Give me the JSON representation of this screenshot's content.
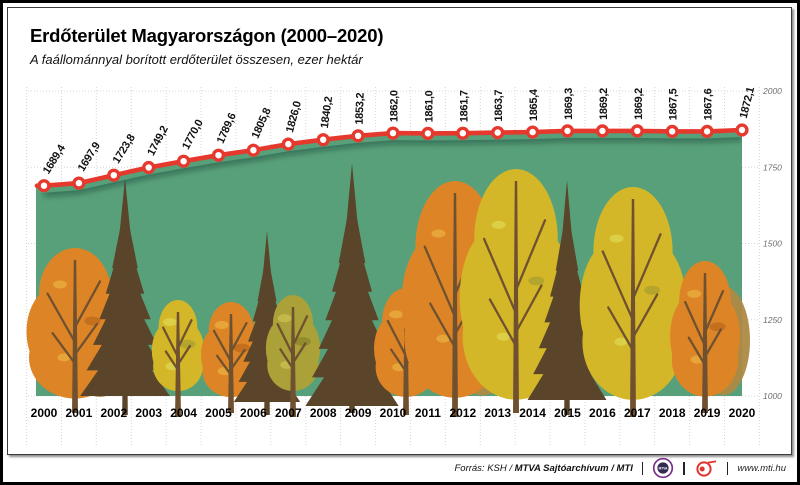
{
  "header": {
    "title": "Erdőterület Magyarországon (2000–2020)",
    "subtitle": "A faállománnyal borított erdőterület összesen, ezer hektár"
  },
  "chart_data": {
    "type": "area",
    "title": "Erdőterület Magyarországon (2000–2020)",
    "subtitle": "A faállománnyal borított erdőterület összesen, ezer hektár",
    "x": [
      2000,
      2001,
      2002,
      2003,
      2004,
      2005,
      2006,
      2007,
      2008,
      2009,
      2010,
      2011,
      2012,
      2013,
      2014,
      2015,
      2016,
      2017,
      2018,
      2019,
      2020
    ],
    "x_labels": [
      "2000",
      "2001",
      "2002",
      "2003",
      "2004",
      "2005",
      "2006",
      "2007",
      "2008",
      "2009",
      "2010",
      "2011",
      "2012",
      "2013",
      "2014",
      "2015",
      "2016",
      "2017",
      "2018",
      "2019",
      "2020"
    ],
    "values": [
      1689.4,
      1697.9,
      1723.8,
      1749.2,
      1770.0,
      1789.6,
      1805.8,
      1826.0,
      1840.2,
      1853.2,
      1862.0,
      1861.0,
      1861.7,
      1863.7,
      1865.4,
      1869.3,
      1869.2,
      1869.2,
      1867.5,
      1867.6,
      1872.1
    ],
    "value_labels": [
      "1689,4",
      "1697,9",
      "1723,8",
      "1749,2",
      "1770,0",
      "1789,6",
      "1805,8",
      "1826,0",
      "1840,2",
      "1853,2",
      "1862,0",
      "1861,0",
      "1861,7",
      "1863,7",
      "1865,4",
      "1869,3",
      "1869,2",
      "1869,2",
      "1867,5",
      "1867,6",
      "1872,1"
    ],
    "ylim": [
      1000,
      2000
    ],
    "yticks": [
      2000,
      1750,
      1500,
      1250,
      1000
    ],
    "ytick_labels": [
      "2000",
      "1750",
      "1500",
      "1250",
      "1000"
    ],
    "grid": true,
    "legend": null,
    "unit": "ezer hektár"
  },
  "palette": {
    "line_red": "#e6392e",
    "area_green": "#57a07a",
    "tree_orange": "#dd8526",
    "tree_orange_dark": "#c06d1d",
    "tree_orange_light": "#e8a93c",
    "tree_yellow": "#d4b728",
    "tree_yellow_dark": "#b0a32f",
    "tree_yellow_light": "#ddd24b",
    "tree_olive": "#aaa138",
    "tree_backdrop_tan": "#ad8a45",
    "conifer_brown": "#5a452a",
    "trunk_brown": "#6f5130",
    "grid_gray": "#d4d4d4",
    "axis_label_gray": "#6e6e6e"
  },
  "footer": {
    "source_prefix": "Forrás: KSH /",
    "source_bold": "MTVA Sajtóarchívum / MTI",
    "website": "www.mti.hu",
    "logos": [
      "mtva-logo",
      "mti-logo"
    ]
  }
}
